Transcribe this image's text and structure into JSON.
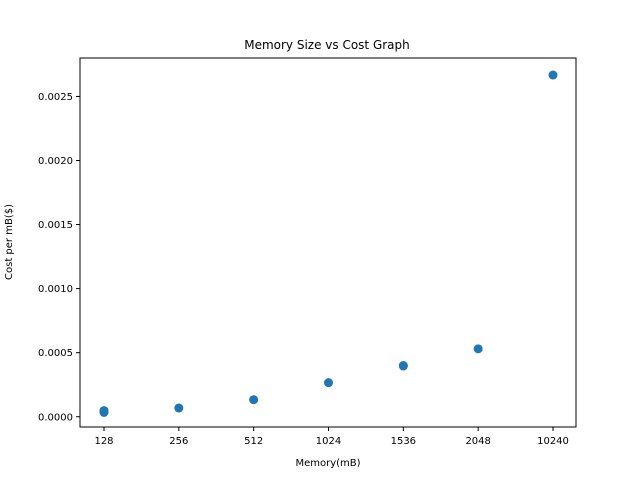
{
  "chart_data": {
    "type": "scatter",
    "title": "Memory Size vs Cost Graph",
    "xlabel": "Memory(mB)",
    "ylabel": "Cost per mB($)",
    "categories": [
      "128",
      "256",
      "512",
      "1024",
      "1536",
      "2048",
      "10240"
    ],
    "y_ticks": [
      "0.0000",
      "0.0005",
      "0.0010",
      "0.0015",
      "0.0020",
      "0.0025"
    ],
    "y_tick_values": [
      0.0,
      0.0005,
      0.001,
      0.0015,
      0.002,
      0.0025
    ],
    "ylim": [
      -8e-05,
      0.0028
    ],
    "grid": false,
    "marker_color": "#1f77b4",
    "points": [
      {
        "x": "128",
        "y": 3.4e-05
      },
      {
        "x": "128",
        "y": 4.2e-05
      },
      {
        "x": "128",
        "y": 4.8e-05
      },
      {
        "x": "256",
        "y": 6.8e-05
      },
      {
        "x": "512",
        "y": 0.000133
      },
      {
        "x": "1024",
        "y": 0.000266
      },
      {
        "x": "1536",
        "y": 0.000396
      },
      {
        "x": "1536",
        "y": 0.0004
      },
      {
        "x": "2048",
        "y": 0.00053
      },
      {
        "x": "10240",
        "y": 0.002667
      }
    ]
  }
}
